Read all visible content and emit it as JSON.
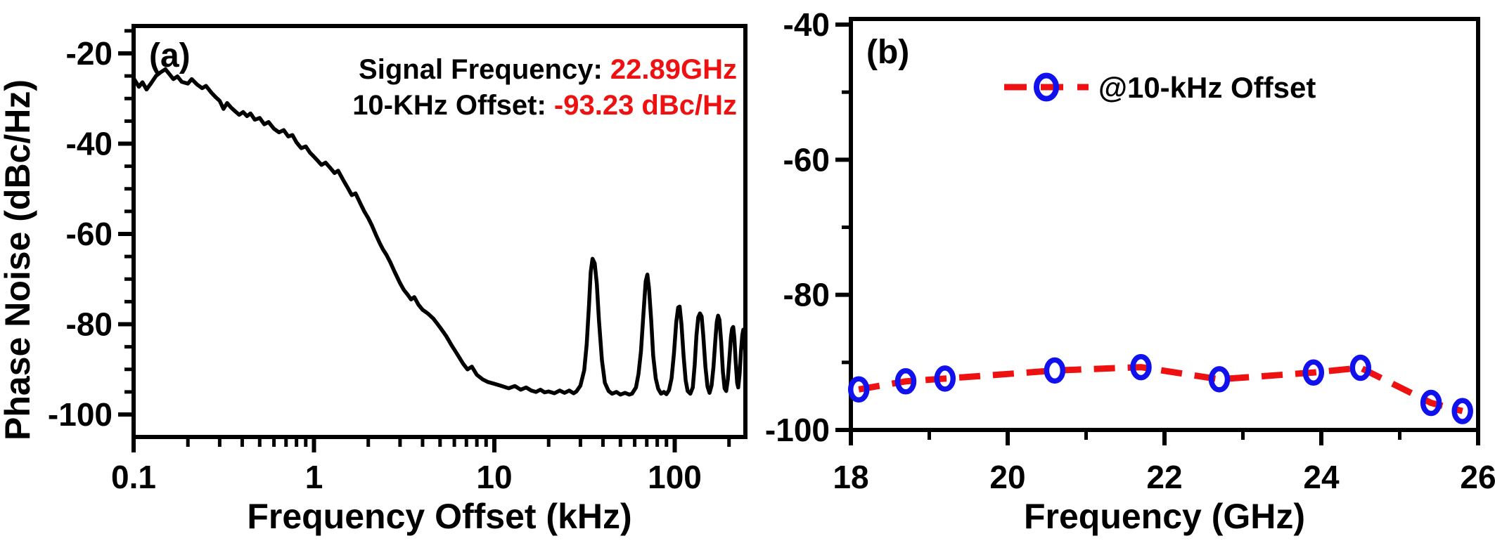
{
  "figure": {
    "background": "#ffffff"
  },
  "colors": {
    "black": "#000000",
    "red": "#ee1111",
    "blue": "#1111ee"
  },
  "chart_data": [
    {
      "id": "a",
      "type": "line",
      "panel_label": "(a)",
      "xscale": "log",
      "xlabel": "Frequency Offset (kHz)",
      "ylabel": "Phase Noise (dBc/Hz)",
      "xlim": [
        0.1,
        246
      ],
      "ylim": [
        -105.5,
        -14
      ],
      "xticks_major": [
        {
          "v": 0.1,
          "label": "0.1"
        },
        {
          "v": 1,
          "label": "1"
        },
        {
          "v": 10,
          "label": "10"
        },
        {
          "v": 100,
          "label": "100"
        }
      ],
      "xticks_minor": [
        0.2,
        0.3,
        0.4,
        0.5,
        0.6,
        0.7,
        0.8,
        0.9,
        2,
        3,
        4,
        5,
        6,
        7,
        8,
        9,
        20,
        30,
        40,
        50,
        60,
        70,
        80,
        90,
        200
      ],
      "yticks_major": [
        {
          "v": -20,
          "label": "-20"
        },
        {
          "v": -40,
          "label": "-40"
        },
        {
          "v": -60,
          "label": "-60"
        },
        {
          "v": -80,
          "label": "-80"
        },
        {
          "v": -100,
          "label": "-100"
        }
      ],
      "yticks_minor": [
        -15,
        -25,
        -30,
        -35,
        -45,
        -50,
        -55,
        -65,
        -70,
        -75,
        -85,
        -90,
        -95
      ],
      "annotations": [
        {
          "prefix": "Signal Frequency: ",
          "value": "22.89GHz"
        },
        {
          "prefix": "10-KHz Offset: ",
          "value": "-93.23 dBc/Hz"
        }
      ],
      "annotation_value_color": "#ee1111",
      "series": [
        {
          "name": "phase-noise-trace",
          "color": "#000000",
          "points": [
            [
              0.1,
              -25.5
            ],
            [
              0.107,
              -27.4
            ],
            [
              0.112,
              -26.4
            ],
            [
              0.118,
              -28.0
            ],
            [
              0.125,
              -26.6
            ],
            [
              0.133,
              -25.0
            ],
            [
              0.141,
              -24.2
            ],
            [
              0.15,
              -23.5
            ],
            [
              0.158,
              -24.6
            ],
            [
              0.166,
              -25.7
            ],
            [
              0.175,
              -25.1
            ],
            [
              0.185,
              -26.3
            ],
            [
              0.2,
              -26.7
            ],
            [
              0.21,
              -25.7
            ],
            [
              0.225,
              -26.9
            ],
            [
              0.24,
              -27.7
            ],
            [
              0.252,
              -27.2
            ],
            [
              0.27,
              -28.7
            ],
            [
              0.285,
              -29.7
            ],
            [
              0.3,
              -30.5
            ],
            [
              0.315,
              -32.3
            ],
            [
              0.33,
              -31.0
            ],
            [
              0.347,
              -32.0
            ],
            [
              0.365,
              -32.8
            ],
            [
              0.385,
              -33.6
            ],
            [
              0.405,
              -33.0
            ],
            [
              0.425,
              -33.9
            ],
            [
              0.445,
              -33.3
            ],
            [
              0.47,
              -34.7
            ],
            [
              0.5,
              -34.3
            ],
            [
              0.53,
              -35.7
            ],
            [
              0.56,
              -35.2
            ],
            [
              0.6,
              -36.7
            ],
            [
              0.64,
              -37.5
            ],
            [
              0.68,
              -37.0
            ],
            [
              0.72,
              -38.4
            ],
            [
              0.76,
              -38.1
            ],
            [
              0.8,
              -39.7
            ],
            [
              0.85,
              -41.0
            ],
            [
              0.9,
              -40.6
            ],
            [
              0.95,
              -42.0
            ],
            [
              1.0,
              -42.9
            ],
            [
              1.05,
              -43.8
            ],
            [
              1.1,
              -44.7
            ],
            [
              1.16,
              -44.2
            ],
            [
              1.22,
              -45.2
            ],
            [
              1.3,
              -46.5
            ],
            [
              1.36,
              -46.0
            ],
            [
              1.45,
              -48.0
            ],
            [
              1.55,
              -50.0
            ],
            [
              1.62,
              -51.4
            ],
            [
              1.7,
              -51.0
            ],
            [
              1.8,
              -53.1
            ],
            [
              1.9,
              -55.0
            ],
            [
              2.0,
              -56.5
            ],
            [
              2.1,
              -58.2
            ],
            [
              2.2,
              -60.1
            ],
            [
              2.32,
              -62.1
            ],
            [
              2.42,
              -63.5
            ],
            [
              2.52,
              -64.6
            ],
            [
              2.65,
              -66.3
            ],
            [
              2.8,
              -68.4
            ],
            [
              3.0,
              -70.9
            ],
            [
              3.15,
              -72.4
            ],
            [
              3.3,
              -73.4
            ],
            [
              3.45,
              -74.5
            ],
            [
              3.6,
              -74.0
            ],
            [
              3.8,
              -75.7
            ],
            [
              4.0,
              -76.8
            ],
            [
              4.3,
              -77.7
            ],
            [
              4.6,
              -78.8
            ],
            [
              5.0,
              -80.7
            ],
            [
              5.4,
              -82.6
            ],
            [
              5.8,
              -84.7
            ],
            [
              6.2,
              -86.5
            ],
            [
              6.7,
              -88.7
            ],
            [
              7.1,
              -90.0
            ],
            [
              7.5,
              -89.4
            ],
            [
              8.0,
              -91.2
            ],
            [
              8.6,
              -92.2
            ],
            [
              9.2,
              -92.8
            ],
            [
              10,
              -93.2
            ],
            [
              11,
              -93.7
            ],
            [
              12,
              -94.2
            ],
            [
              13,
              -93.7
            ],
            [
              14,
              -94.5
            ],
            [
              15,
              -94.0
            ],
            [
              16,
              -94.7
            ],
            [
              17,
              -95.0
            ],
            [
              18,
              -94.5
            ],
            [
              19,
              -95.1
            ],
            [
              20,
              -94.9
            ],
            [
              21.5,
              -95.3
            ],
            [
              23,
              -94.7
            ],
            [
              24.5,
              -95.2
            ],
            [
              26,
              -94.7
            ],
            [
              27.5,
              -95.3
            ],
            [
              28.5,
              -94.9
            ],
            [
              30,
              -93.6
            ],
            [
              31.5,
              -90.2
            ],
            [
              32.5,
              -84.5
            ],
            [
              33.5,
              -75.5
            ],
            [
              34.2,
              -68.5
            ],
            [
              35,
              -65.5
            ],
            [
              36,
              -66.5
            ],
            [
              37,
              -71.0
            ],
            [
              38,
              -79.0
            ],
            [
              39.5,
              -88.0
            ],
            [
              41,
              -93.0
            ],
            [
              43,
              -94.8
            ],
            [
              45,
              -95.4
            ],
            [
              47.5,
              -95.0
            ],
            [
              50,
              -95.6
            ],
            [
              53,
              -95.2
            ],
            [
              56,
              -95.6
            ],
            [
              58,
              -95.4
            ],
            [
              61,
              -94.0
            ],
            [
              63,
              -91.0
            ],
            [
              65,
              -86.0
            ],
            [
              67,
              -78.0
            ],
            [
              69,
              -70.5
            ],
            [
              70.5,
              -69.0
            ],
            [
              72,
              -72.0
            ],
            [
              74,
              -79.0
            ],
            [
              76,
              -87.0
            ],
            [
              78.5,
              -92.0
            ],
            [
              81,
              -94.3
            ],
            [
              84,
              -95.4
            ],
            [
              87,
              -95.0
            ],
            [
              90,
              -95.5
            ],
            [
              93,
              -94.6
            ],
            [
              96,
              -92.0
            ],
            [
              99,
              -86.5
            ],
            [
              102,
              -79.5
            ],
            [
              104.5,
              -76.3
            ],
            [
              106.5,
              -76.1
            ],
            [
              109,
              -80.0
            ],
            [
              112,
              -87.0
            ],
            [
              115,
              -92.5
            ],
            [
              118,
              -94.8
            ],
            [
              122,
              -95.4
            ],
            [
              126,
              -94.0
            ],
            [
              129,
              -89.0
            ],
            [
              132,
              -82.5
            ],
            [
              135,
              -78.5
            ],
            [
              138,
              -77.6
            ],
            [
              141,
              -78.3
            ],
            [
              144,
              -82.5
            ],
            [
              148,
              -89.5
            ],
            [
              152,
              -93.8
            ],
            [
              156,
              -95.2
            ],
            [
              160,
              -93.6
            ],
            [
              164,
              -89.5
            ],
            [
              168,
              -83.5
            ],
            [
              171,
              -79.5
            ],
            [
              174,
              -78.1
            ],
            [
              177,
              -79.0
            ],
            [
              181,
              -84.0
            ],
            [
              185,
              -90.5
            ],
            [
              189,
              -94.2
            ],
            [
              193,
              -94.8
            ],
            [
              197,
              -92.3
            ],
            [
              201,
              -87.5
            ],
            [
              205,
              -82.8
            ],
            [
              208,
              -81.0
            ],
            [
              211,
              -80.6
            ],
            [
              214,
              -83.0
            ],
            [
              218,
              -88.5
            ],
            [
              222,
              -93.0
            ],
            [
              225,
              -94.0
            ],
            [
              229,
              -91.0
            ],
            [
              233,
              -86.0
            ],
            [
              237,
              -82.4
            ],
            [
              240,
              -81.2
            ],
            [
              243,
              -82.5
            ],
            [
              246,
              -86.0
            ]
          ]
        }
      ]
    },
    {
      "id": "b",
      "type": "line",
      "panel_label": "(b)",
      "xscale": "linear",
      "xlabel": "Frequency (GHz)",
      "ylabel": "",
      "xlim": [
        18,
        26
      ],
      "ylim": [
        -100,
        -39
      ],
      "xticks_major": [
        {
          "v": 18,
          "label": "18"
        },
        {
          "v": 20,
          "label": "20"
        },
        {
          "v": 22,
          "label": "22"
        },
        {
          "v": 24,
          "label": "24"
        },
        {
          "v": 26,
          "label": "26"
        }
      ],
      "xticks_minor": [
        19,
        21,
        23,
        25
      ],
      "yticks_major": [
        {
          "v": -40,
          "label": "-40"
        },
        {
          "v": -60,
          "label": "-60"
        },
        {
          "v": -80,
          "label": "-80"
        },
        {
          "v": -100,
          "label": "-100"
        }
      ],
      "yticks_minor": [
        -50,
        -70,
        -90
      ],
      "legend": {
        "label": "@10-kHz Offset",
        "line_color": "#ee1111",
        "marker_color": "#1111ee"
      },
      "series": [
        {
          "name": "@10-kHz Offset",
          "color": "#ee1111",
          "line_style": "dashed",
          "marker": "open-circle",
          "marker_color": "#1111ee",
          "x": [
            18.1,
            18.7,
            19.2,
            20.6,
            21.7,
            22.7,
            23.9,
            24.5,
            25.4,
            25.8
          ],
          "y": [
            -94.0,
            -92.8,
            -92.4,
            -91.2,
            -90.7,
            -92.5,
            -91.5,
            -90.8,
            -96.0,
            -97.2
          ]
        }
      ]
    }
  ]
}
